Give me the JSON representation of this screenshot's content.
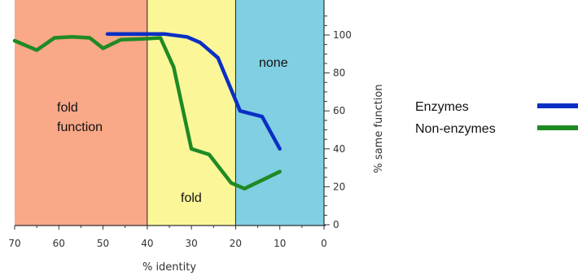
{
  "chart_data": {
    "type": "line",
    "xlabel": "% identity",
    "ylabel": "% same function",
    "xlim": [
      70,
      0
    ],
    "ylim": [
      0,
      110
    ],
    "x_ticks": [
      "70",
      "60",
      "50",
      "40",
      "30",
      "20",
      "10",
      "0"
    ],
    "y_ticks": [
      "0",
      "20",
      "40",
      "60",
      "80",
      "100"
    ],
    "regions": [
      {
        "x_from": 70,
        "x_to": 40,
        "color": "#f9a888",
        "label_lines": [
          "fold",
          "function"
        ]
      },
      {
        "x_from": 40,
        "x_to": 20,
        "color": "#fbf799",
        "label_lines": [
          "fold"
        ]
      },
      {
        "x_from": 20,
        "x_to": 0,
        "color": "#80cfe2",
        "label_lines": [
          "none"
        ]
      }
    ],
    "series": [
      {
        "name": "Enzymes",
        "color": "#0a2fc4",
        "x": [
          49,
          40,
          36,
          31,
          28,
          24,
          19,
          14,
          10
        ],
        "y": [
          100.5,
          100.5,
          100.5,
          99,
          96,
          88,
          60,
          57,
          40
        ]
      },
      {
        "name": "Non-enzymes",
        "color": "#1f8a24",
        "x": [
          70,
          65,
          61,
          57,
          53,
          50,
          46,
          41,
          37,
          34,
          30,
          26,
          21,
          18,
          10
        ],
        "y": [
          97,
          92,
          98.5,
          99,
          98.5,
          93,
          97.5,
          98,
          98.5,
          83,
          40,
          37,
          22,
          19,
          28
        ]
      }
    ],
    "legend_position": "right"
  }
}
